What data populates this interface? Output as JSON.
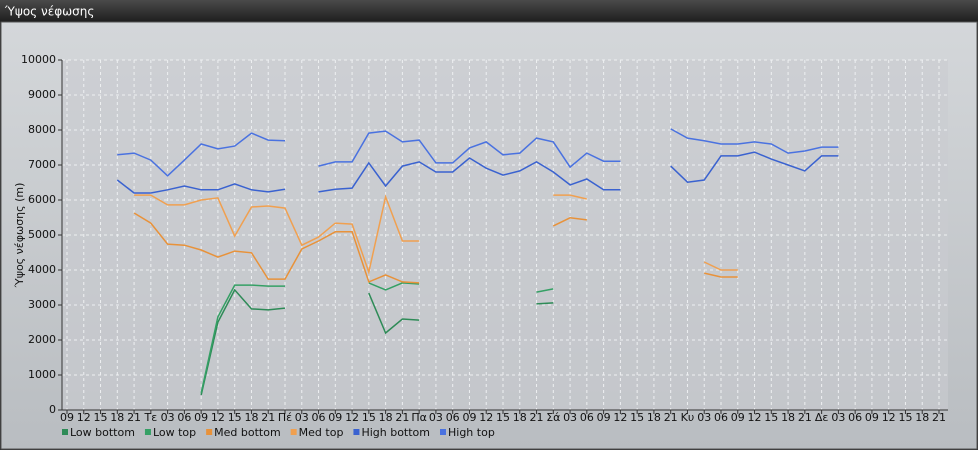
{
  "chart_data": {
    "type": "line",
    "title": "Ύψος νέφωσης",
    "y_label": "Ύψος νέφωσης (m)",
    "categories": [
      "09",
      "12",
      "15",
      "18",
      "21",
      "Τε",
      "03",
      "06",
      "09",
      "12",
      "15",
      "18",
      "21",
      "Πέ",
      "03",
      "06",
      "09",
      "12",
      "15",
      "18",
      "21",
      "Πα",
      "03",
      "06",
      "09",
      "12",
      "15",
      "18",
      "21",
      "Σά",
      "03",
      "06",
      "09",
      "12",
      "15",
      "18",
      "21",
      "Κυ",
      "03",
      "06",
      "09",
      "12",
      "15",
      "18",
      "21",
      "Δε",
      "03",
      "06",
      "09",
      "12",
      "15",
      "18",
      "21"
    ],
    "ylim": [
      0,
      10000
    ],
    "yticks": [
      0,
      1000,
      2000,
      3000,
      4000,
      5000,
      6000,
      7000,
      8000,
      9000,
      10000
    ],
    "grid": true,
    "legend": "bottom-left",
    "series": [
      {
        "name": "Low bottom",
        "color": "#2e8b57",
        "values": [
          null,
          null,
          null,
          null,
          null,
          null,
          null,
          null,
          430,
          2510,
          3430,
          2890,
          2860,
          2910,
          null,
          null,
          null,
          null,
          3340,
          2200,
          2600,
          2570,
          null,
          null,
          null,
          null,
          null,
          null,
          3030,
          3060,
          null,
          null,
          null,
          null,
          null,
          null,
          null,
          null,
          null,
          null,
          null,
          null,
          null,
          null,
          null,
          null,
          null,
          null,
          null,
          null,
          null,
          null,
          null
        ]
      },
      {
        "name": "Low top",
        "color": "#35a065",
        "values": [
          null,
          null,
          null,
          null,
          null,
          null,
          null,
          null,
          490,
          2660,
          3570,
          3570,
          3540,
          3540,
          null,
          null,
          null,
          null,
          3630,
          3430,
          3630,
          3600,
          null,
          null,
          null,
          null,
          null,
          null,
          3370,
          3460,
          null,
          null,
          null,
          null,
          null,
          null,
          null,
          null,
          null,
          null,
          null,
          null,
          null,
          null,
          null,
          null,
          null,
          null,
          null,
          null,
          null,
          null,
          null
        ]
      },
      {
        "name": "Med bottom",
        "color": "#e8923a",
        "values": [
          null,
          null,
          null,
          null,
          5630,
          5340,
          4740,
          4710,
          4570,
          4370,
          4540,
          4490,
          3740,
          3740,
          4600,
          4830,
          5090,
          5090,
          3660,
          3860,
          3660,
          3630,
          null,
          null,
          null,
          null,
          null,
          null,
          null,
          5260,
          5490,
          5430,
          null,
          null,
          null,
          null,
          null,
          null,
          3910,
          3800,
          3800,
          null,
          null,
          null,
          null,
          null,
          null,
          null,
          null,
          null,
          null,
          null,
          null
        ]
      },
      {
        "name": "Med top",
        "color": "#f0a050",
        "values": [
          null,
          null,
          null,
          null,
          6140,
          6140,
          5860,
          5860,
          6000,
          6060,
          4970,
          5800,
          5830,
          5770,
          4710,
          4940,
          5340,
          5310,
          3940,
          6090,
          4830,
          4830,
          null,
          null,
          null,
          null,
          null,
          null,
          null,
          6140,
          6140,
          6030,
          null,
          null,
          null,
          null,
          null,
          null,
          4230,
          4000,
          4000,
          null,
          null,
          null,
          null,
          null,
          null,
          null,
          null,
          null,
          null,
          null,
          null
        ]
      },
      {
        "name": "High bottom",
        "color": "#3a62d0",
        "values": [
          null,
          null,
          null,
          6570,
          6200,
          6200,
          6290,
          6400,
          6290,
          6290,
          6460,
          6290,
          6230,
          6310,
          null,
          6230,
          6310,
          6340,
          7060,
          6400,
          6970,
          7090,
          6800,
          6800,
          7200,
          6910,
          6710,
          6830,
          7090,
          6800,
          6430,
          6600,
          6290,
          6290,
          null,
          null,
          6970,
          6510,
          6570,
          7260,
          7260,
          7370,
          7170,
          7000,
          6830,
          7260,
          7260,
          null,
          null,
          null,
          null,
          null,
          null
        ]
      },
      {
        "name": "High top",
        "color": "#4a72e0",
        "values": [
          null,
          null,
          null,
          7290,
          7340,
          7140,
          6690,
          7140,
          7600,
          7460,
          7540,
          7910,
          7710,
          7690,
          null,
          6970,
          7090,
          7090,
          7910,
          7970,
          7660,
          7710,
          7060,
          7060,
          7490,
          7660,
          7290,
          7340,
          7770,
          7660,
          6940,
          7340,
          7110,
          7110,
          null,
          null,
          8030,
          7770,
          7690,
          7600,
          7600,
          7660,
          7600,
          7340,
          7400,
          7510,
          7510,
          null,
          null,
          null,
          null,
          null,
          null
        ]
      }
    ]
  }
}
